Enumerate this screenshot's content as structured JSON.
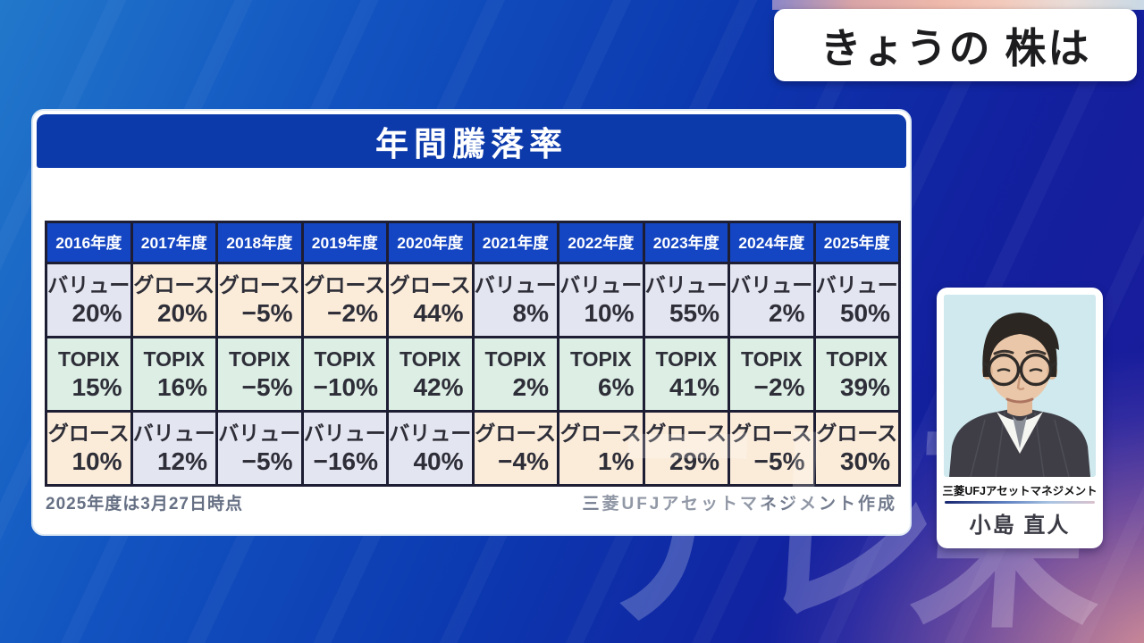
{
  "program_header": {
    "title": "きょうの 株は"
  },
  "panel": {
    "title": "年間騰落率",
    "footnote_left": "2025年度は3月27日時点",
    "credit_right": "三菱UFJアセットマネジメント作成"
  },
  "chart_data": {
    "type": "table",
    "title": "年間騰落率",
    "columns": [
      "2016年度",
      "2017年度",
      "2018年度",
      "2019年度",
      "2020年度",
      "2021年度",
      "2022年度",
      "2023年度",
      "2024年度",
      "2025年度"
    ],
    "rows": [
      {
        "year": "2016年度",
        "cells": [
          {
            "label": "バリュー",
            "value": "20%"
          },
          {
            "label": "TOPIX",
            "value": "15%"
          },
          {
            "label": "グロース",
            "value": "10%"
          }
        ]
      },
      {
        "year": "2017年度",
        "cells": [
          {
            "label": "グロース",
            "value": "20%"
          },
          {
            "label": "TOPIX",
            "value": "16%"
          },
          {
            "label": "バリュー",
            "value": "12%"
          }
        ]
      },
      {
        "year": "2018年度",
        "cells": [
          {
            "label": "グロース",
            "value": "−5%"
          },
          {
            "label": "TOPIX",
            "value": "−5%"
          },
          {
            "label": "バリュー",
            "value": "−5%"
          }
        ]
      },
      {
        "year": "2019年度",
        "cells": [
          {
            "label": "グロース",
            "value": "−2%"
          },
          {
            "label": "TOPIX",
            "value": "−10%"
          },
          {
            "label": "バリュー",
            "value": "−16%"
          }
        ]
      },
      {
        "year": "2020年度",
        "cells": [
          {
            "label": "グロース",
            "value": "44%"
          },
          {
            "label": "TOPIX",
            "value": "42%"
          },
          {
            "label": "バリュー",
            "value": "40%"
          }
        ]
      },
      {
        "year": "2021年度",
        "cells": [
          {
            "label": "バリュー",
            "value": "8%"
          },
          {
            "label": "TOPIX",
            "value": "2%"
          },
          {
            "label": "グロース",
            "value": "−4%"
          }
        ]
      },
      {
        "year": "2022年度",
        "cells": [
          {
            "label": "バリュー",
            "value": "10%"
          },
          {
            "label": "TOPIX",
            "value": "6%"
          },
          {
            "label": "グロース",
            "value": "1%"
          }
        ]
      },
      {
        "year": "2023年度",
        "cells": [
          {
            "label": "バリュー",
            "value": "55%"
          },
          {
            "label": "TOPIX",
            "value": "41%"
          },
          {
            "label": "グロース",
            "value": "29%"
          }
        ]
      },
      {
        "year": "2024年度",
        "cells": [
          {
            "label": "バリュー",
            "value": "2%"
          },
          {
            "label": "TOPIX",
            "value": "−2%"
          },
          {
            "label": "グロース",
            "value": "−5%"
          }
        ]
      },
      {
        "year": "2025年度",
        "cells": [
          {
            "label": "バリュー",
            "value": "50%"
          },
          {
            "label": "TOPIX",
            "value": "39%"
          },
          {
            "label": "グロース",
            "value": "30%"
          }
        ]
      }
    ],
    "category_colors": {
      "バリュー": "#e3e5f0",
      "TOPIX": "#ddefe5",
      "グロース": "#fbecda"
    },
    "header_bg": "#1445c2",
    "note": "2025年度は3月27日時点",
    "source": "三菱UFJアセットマネジメント作成"
  },
  "analyst_card": {
    "affiliation": "三菱UFJアセットマネジメント",
    "name": "小島 直人"
  },
  "watermark": "テレ東"
}
